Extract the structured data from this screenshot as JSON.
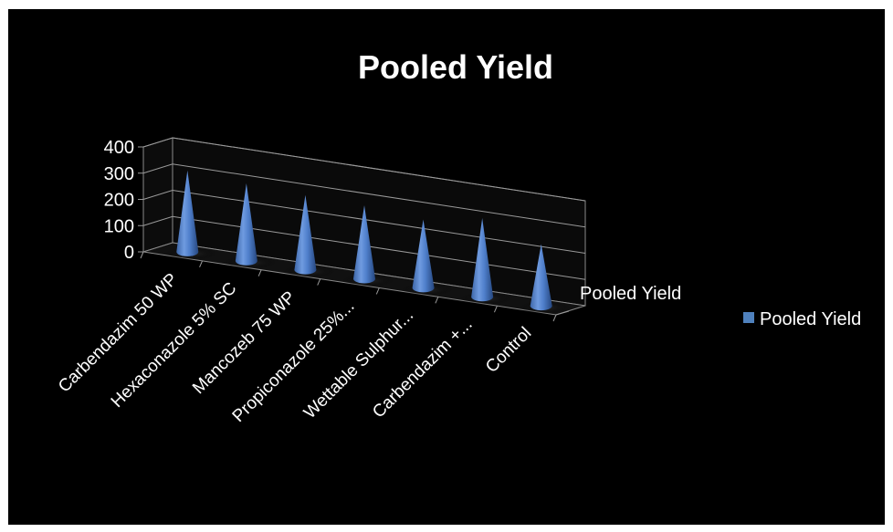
{
  "chart_data": {
    "type": "bar",
    "shape": "3d-cone",
    "title": "Pooled Yield",
    "categories": [
      "Carbendazim 50 WP",
      "Hexaconazole 5% SC",
      "Mancozeb 75 WP",
      "Propiconazole 25%...",
      "Wettable Sulphur...",
      "Carbendazim +...",
      "Control"
    ],
    "series": [
      {
        "name": "Pooled Yield",
        "values": [
          310,
          295,
          285,
          280,
          260,
          300,
          235
        ]
      }
    ],
    "depth_label": "Pooled Yield",
    "ylim": [
      0,
      400
    ],
    "yticks": [
      "400",
      "300",
      "200",
      "100",
      "0"
    ],
    "grid": true,
    "legend": {
      "position": "right",
      "entries": [
        "Pooled Yield"
      ]
    },
    "colors": {
      "background": "#000000",
      "cone": "#4f81bd",
      "text": "#ffffff",
      "grid": "#9a9a9a"
    }
  }
}
